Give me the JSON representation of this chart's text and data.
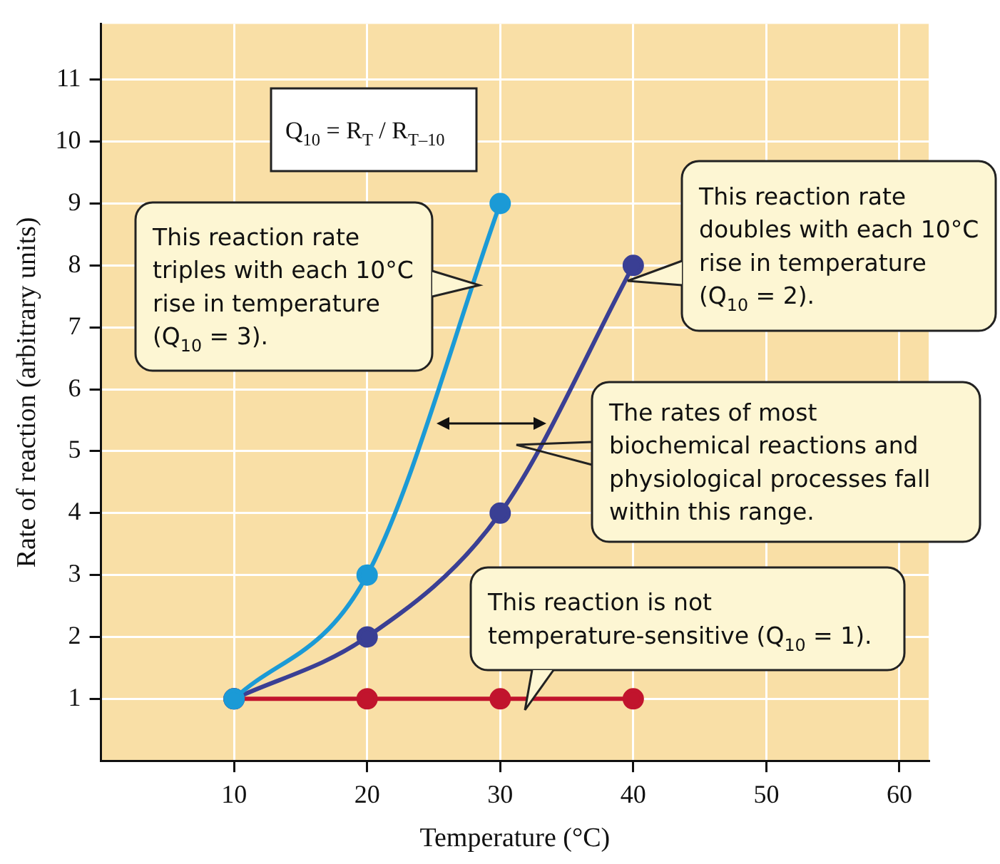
{
  "chart_data": {
    "type": "line",
    "xlabel": "Temperature (°C)",
    "ylabel": "Rate of reaction (arbitrary units)",
    "x": [
      10,
      20,
      30,
      40
    ],
    "series": [
      {
        "color": "#1b9ad6",
        "values": [
          1,
          3,
          9,
          null
        ]
      },
      {
        "color": "#3a3f94",
        "values": [
          1,
          2,
          4,
          8
        ]
      },
      {
        "color": "#c1142d",
        "values": [
          1,
          1,
          1,
          1
        ]
      }
    ],
    "xlim": [
      0,
      62.2
    ],
    "ylim": [
      0,
      11.9
    ],
    "xticks": [
      10,
      20,
      30,
      40,
      50,
      60
    ],
    "yticks": [
      1,
      2,
      3,
      4,
      5,
      6,
      7,
      8,
      9,
      10,
      11
    ],
    "grid": true,
    "marker": "circle",
    "line_style": "solid",
    "annotations": [
      "Q$_{10}$ = R$_{T}$ / R$_{T–10}$",
      "This reaction rate\ntriples with each 10°C\nrise in temperature\n(Q$_{10}$ = 3).",
      "This reaction rate\ndoubles with each 10°C\nrise in temperature\n(Q$_{10}$ = 2).",
      "The rates of most\nbiochemical reactions and\nphysiological processes fall\nwithin this range.",
      "This reaction is not\ntemperature-sensitive (Q$_{10}$ = 1)."
    ]
  }
}
